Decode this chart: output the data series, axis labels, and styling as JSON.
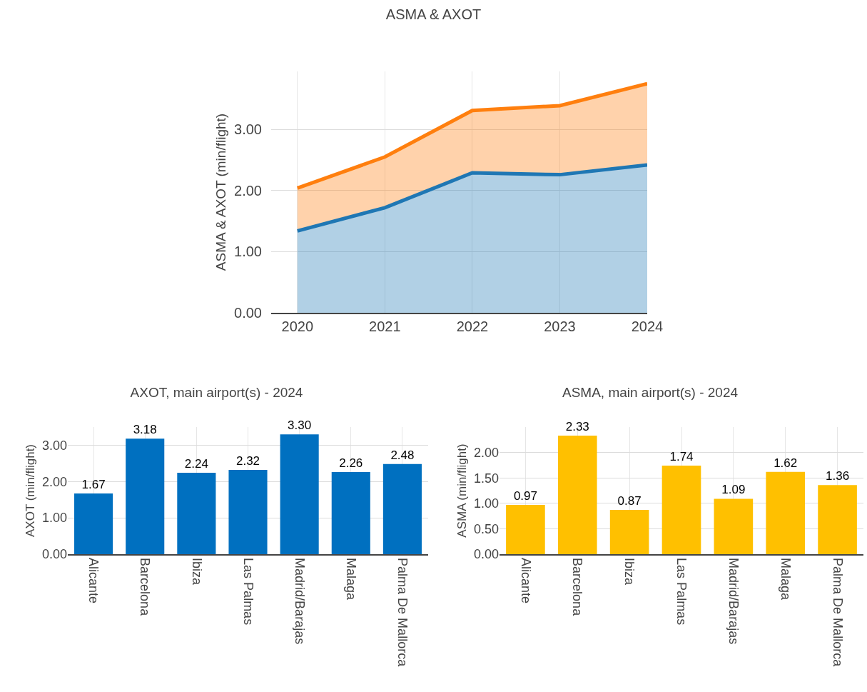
{
  "chart_data": [
    {
      "type": "area",
      "title": "ASMA & AXOT",
      "ylabel": "ASMA & AXOT (min/flight)",
      "stacked": true,
      "x": [
        2020,
        2021,
        2022,
        2023,
        2024
      ],
      "xlim": [
        2019.7,
        2024
      ],
      "xticks": [
        2020,
        2021,
        2022,
        2023,
        2024
      ],
      "ylim": [
        0,
        3.95
      ],
      "yticks": [
        {
          "value": 0,
          "label": "0.00"
        },
        {
          "value": 1,
          "label": "1.00"
        },
        {
          "value": 2,
          "label": "2.00"
        },
        {
          "value": 3,
          "label": "3.00"
        }
      ],
      "grid": true,
      "series": [
        {
          "color": "#1f77b4",
          "values": [
            1.34,
            1.72,
            2.29,
            2.26,
            2.42
          ]
        },
        {
          "color": "#ff7f0e",
          "values": [
            0.7,
            0.83,
            1.02,
            1.13,
            1.33
          ]
        }
      ]
    },
    {
      "type": "bar",
      "title": "AXOT, main airport(s) - 2024",
      "ylabel": "AXOT (min/flight)",
      "categories": [
        "Alicante",
        "Barcelona",
        "Ibiza",
        "Las Palmas",
        "Madrid/Barajas",
        "Malaga",
        "Palma De Mallorca"
      ],
      "values": [
        1.67,
        3.18,
        2.24,
        2.32,
        3.3,
        2.26,
        2.48
      ],
      "value_labels": [
        "1.67",
        "3.18",
        "2.24",
        "2.32",
        "3.30",
        "2.26",
        "2.48"
      ],
      "color": "#0070c0",
      "ylim": [
        0,
        3.5
      ],
      "yticks": [
        {
          "value": 0,
          "label": "0.00"
        },
        {
          "value": 1,
          "label": "1.00"
        },
        {
          "value": 2,
          "label": "2.00"
        },
        {
          "value": 3,
          "label": "3.00"
        }
      ],
      "grid": true
    },
    {
      "type": "bar",
      "title": "ASMA, main airport(s) - 2024",
      "ylabel": "ASMA (min/flight)",
      "categories": [
        "Alicante",
        "Barcelona",
        "Ibiza",
        "Las Palmas",
        "Madrid/Barajas",
        "Malaga",
        "Palma De Mallorca"
      ],
      "values": [
        0.97,
        2.33,
        0.87,
        1.74,
        1.09,
        1.62,
        1.36
      ],
      "value_labels": [
        "0.97",
        "2.33",
        "0.87",
        "1.74",
        "1.09",
        "1.62",
        "1.36"
      ],
      "color": "#ffc000",
      "ylim": [
        0,
        2.5
      ],
      "yticks": [
        {
          "value": 0,
          "label": "0.00"
        },
        {
          "value": 0.5,
          "label": "0.50"
        },
        {
          "value": 1,
          "label": "1.00"
        },
        {
          "value": 1.5,
          "label": "1.50"
        },
        {
          "value": 2,
          "label": "2.00"
        }
      ],
      "grid": true
    }
  ]
}
